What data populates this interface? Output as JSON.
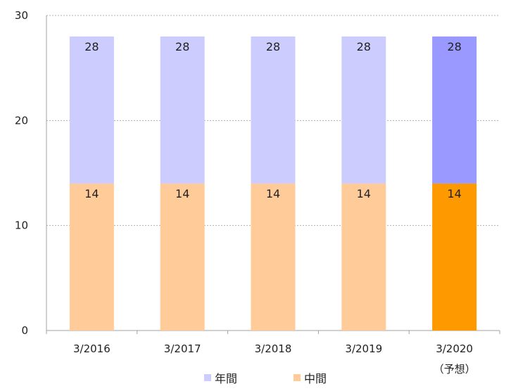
{
  "chart_data": {
    "type": "bar",
    "stacked": true,
    "categories": [
      "3/2016",
      "3/2017",
      "3/2018",
      "3/2019",
      "3/2020"
    ],
    "category_sublabels": [
      "",
      "",
      "",
      "",
      "（予想）"
    ],
    "series": [
      {
        "name": "中間",
        "values": [
          14,
          14,
          14,
          14,
          14
        ],
        "color": "#FFCC99",
        "highlight_color": "#FF9900"
      },
      {
        "name": "年間",
        "values": [
          14,
          14,
          14,
          14,
          14
        ],
        "color": "#CCCCFF",
        "highlight_color": "#9999FF"
      }
    ],
    "data_labels": {
      "中間": [
        "14",
        "14",
        "14",
        "14",
        "14"
      ],
      "年間": [
        "28",
        "28",
        "28",
        "28",
        "28"
      ]
    },
    "highlight_index": 4,
    "ylim": [
      0,
      30
    ],
    "yticks": [
      "0",
      "10",
      "20",
      "30"
    ],
    "grid": true,
    "legend_position": "bottom",
    "legend": [
      {
        "label": "年間",
        "color": "#CCCCFF"
      },
      {
        "label": "中間",
        "color": "#FFCC99"
      }
    ]
  }
}
